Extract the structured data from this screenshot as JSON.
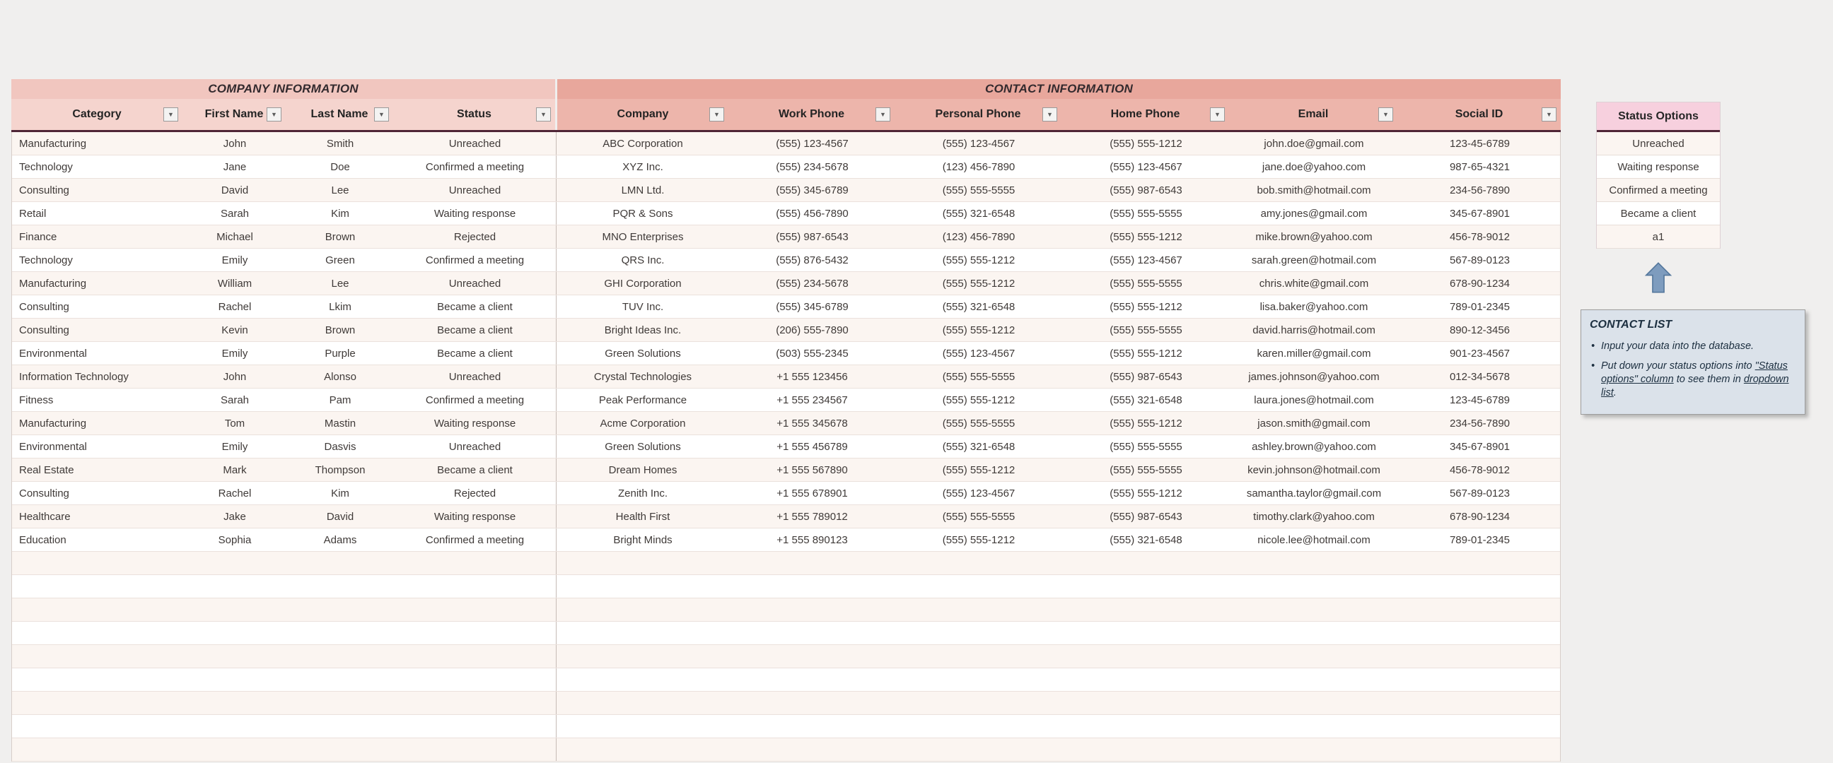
{
  "colors": {
    "page_bg": "#f0efee",
    "company_title_bg": "#f1c6bf",
    "company_header_bg": "#f5d4ce",
    "contact_title_bg": "#e8a79c",
    "contact_header_bg": "#edb5ab",
    "header_underline": "#4f2536",
    "row_alt_bg": "#fbf5f1",
    "status_header_bg": "#f7d0de",
    "arrow_fill": "#7e9cbe",
    "arrow_stroke": "#54779c",
    "note_bg": "#dbe2ea",
    "note_text": "#1c2f40"
  },
  "icons": {
    "filter_dropdown": "▼"
  },
  "table": {
    "sections": [
      {
        "title": "COMPANY INFORMATION",
        "columns": [
          "Category",
          "First Name",
          "Last Name",
          "Status"
        ]
      },
      {
        "title": "CONTACT INFORMATION",
        "columns": [
          "Company",
          "Work Phone",
          "Personal Phone",
          "Home Phone",
          "Email",
          "Social ID"
        ]
      }
    ],
    "rows": [
      [
        "Manufacturing",
        "John",
        "Smith",
        "Unreached",
        "ABC Corporation",
        "(555) 123-4567",
        "(555) 123-4567",
        "(555) 555-1212",
        "john.doe@gmail.com",
        "123-45-6789"
      ],
      [
        "Technology",
        "Jane",
        "Doe",
        "Confirmed a meeting",
        "XYZ Inc.",
        "(555) 234-5678",
        "(123) 456-7890",
        "(555) 123-4567",
        "jane.doe@yahoo.com",
        "987-65-4321"
      ],
      [
        "Consulting",
        "David",
        "Lee",
        "Unreached",
        "LMN Ltd.",
        "(555) 345-6789",
        "(555) 555-5555",
        "(555) 987-6543",
        "bob.smith@hotmail.com",
        "234-56-7890"
      ],
      [
        "Retail",
        "Sarah",
        "Kim",
        "Waiting response",
        "PQR & Sons",
        "(555) 456-7890",
        "(555) 321-6548",
        "(555) 555-5555",
        "amy.jones@gmail.com",
        "345-67-8901"
      ],
      [
        "Finance",
        "Michael",
        "Brown",
        "Rejected",
        "MNO Enterprises",
        "(555) 987-6543",
        "(123) 456-7890",
        "(555) 555-1212",
        "mike.brown@yahoo.com",
        "456-78-9012"
      ],
      [
        "Technology",
        "Emily",
        "Green",
        "Confirmed a meeting",
        "QRS Inc.",
        "(555) 876-5432",
        "(555) 555-1212",
        "(555) 123-4567",
        "sarah.green@hotmail.com",
        "567-89-0123"
      ],
      [
        "Manufacturing",
        "William",
        "Lee",
        "Unreached",
        "GHI Corporation",
        "(555) 234-5678",
        "(555) 555-1212",
        "(555) 555-5555",
        "chris.white@gmail.com",
        "678-90-1234"
      ],
      [
        "Consulting",
        "Rachel",
        "Lkim",
        "Became a client",
        "TUV Inc.",
        "(555) 345-6789",
        "(555) 321-6548",
        "(555) 555-1212",
        "lisa.baker@yahoo.com",
        "789-01-2345"
      ],
      [
        "Consulting",
        "Kevin",
        "Brown",
        "Became a client",
        "Bright Ideas Inc.",
        "(206) 555-7890",
        "(555) 555-1212",
        "(555) 555-5555",
        "david.harris@hotmail.com",
        "890-12-3456"
      ],
      [
        "Environmental",
        "Emily",
        "Purple",
        "Became a client",
        "Green Solutions",
        "(503) 555-2345",
        "(555) 123-4567",
        "(555) 555-1212",
        "karen.miller@gmail.com",
        "901-23-4567"
      ],
      [
        "Information Technology",
        "John",
        "Alonso",
        "Unreached",
        "Crystal Technologies",
        "+1 555 123456",
        "(555) 555-5555",
        "(555) 987-6543",
        "james.johnson@yahoo.com",
        "012-34-5678"
      ],
      [
        "Fitness",
        "Sarah",
        "Pam",
        "Confirmed a meeting",
        "Peak Performance",
        "+1 555 234567",
        "(555) 555-1212",
        "(555) 321-6548",
        "laura.jones@hotmail.com",
        "123-45-6789"
      ],
      [
        "Manufacturing",
        "Tom",
        "Mastin",
        "Waiting response",
        "Acme Corporation",
        "+1 555 345678",
        "(555) 555-5555",
        "(555) 555-1212",
        "jason.smith@gmail.com",
        "234-56-7890"
      ],
      [
        "Environmental",
        "Emily",
        "Dasvis",
        "Unreached",
        "Green Solutions",
        "+1 555 456789",
        "(555) 321-6548",
        "(555) 555-5555",
        "ashley.brown@yahoo.com",
        "345-67-8901"
      ],
      [
        "Real Estate",
        "Mark",
        "Thompson",
        "Became a client",
        "Dream Homes",
        "+1 555 567890",
        "(555) 555-1212",
        "(555) 555-5555",
        "kevin.johnson@hotmail.com",
        "456-78-9012"
      ],
      [
        "Consulting",
        "Rachel",
        "Kim",
        "Rejected",
        "Zenith Inc.",
        "+1 555 678901",
        "(555) 123-4567",
        "(555) 555-1212",
        "samantha.taylor@gmail.com",
        "567-89-0123"
      ],
      [
        "Healthcare",
        "Jake",
        "David",
        "Waiting response",
        "Health First",
        "+1 555 789012",
        "(555) 555-5555",
        "(555) 987-6543",
        "timothy.clark@yahoo.com",
        "678-90-1234"
      ],
      [
        "Education",
        "Sophia",
        "Adams",
        "Confirmed a meeting",
        "Bright Minds",
        "+1 555 890123",
        "(555) 555-1212",
        "(555) 321-6548",
        "nicole.lee@hotmail.com",
        "789-01-2345"
      ]
    ],
    "empty_row_count": 9
  },
  "status_options": {
    "title": "Status Options",
    "options": [
      "Unreached",
      "Waiting response",
      "Confirmed a meeting",
      "Became a client",
      "a1"
    ]
  },
  "note": {
    "title": "CONTACT LIST",
    "bullets": [
      [
        {
          "t": "Input your data into the database.",
          "u": false
        }
      ],
      [
        {
          "t": "Put down your status options into ",
          "u": false
        },
        {
          "t": "\"Status options\" column",
          "u": true
        },
        {
          "t": " to see them in ",
          "u": false
        },
        {
          "t": "dropdown list",
          "u": true
        },
        {
          "t": ".",
          "u": false
        }
      ]
    ]
  }
}
